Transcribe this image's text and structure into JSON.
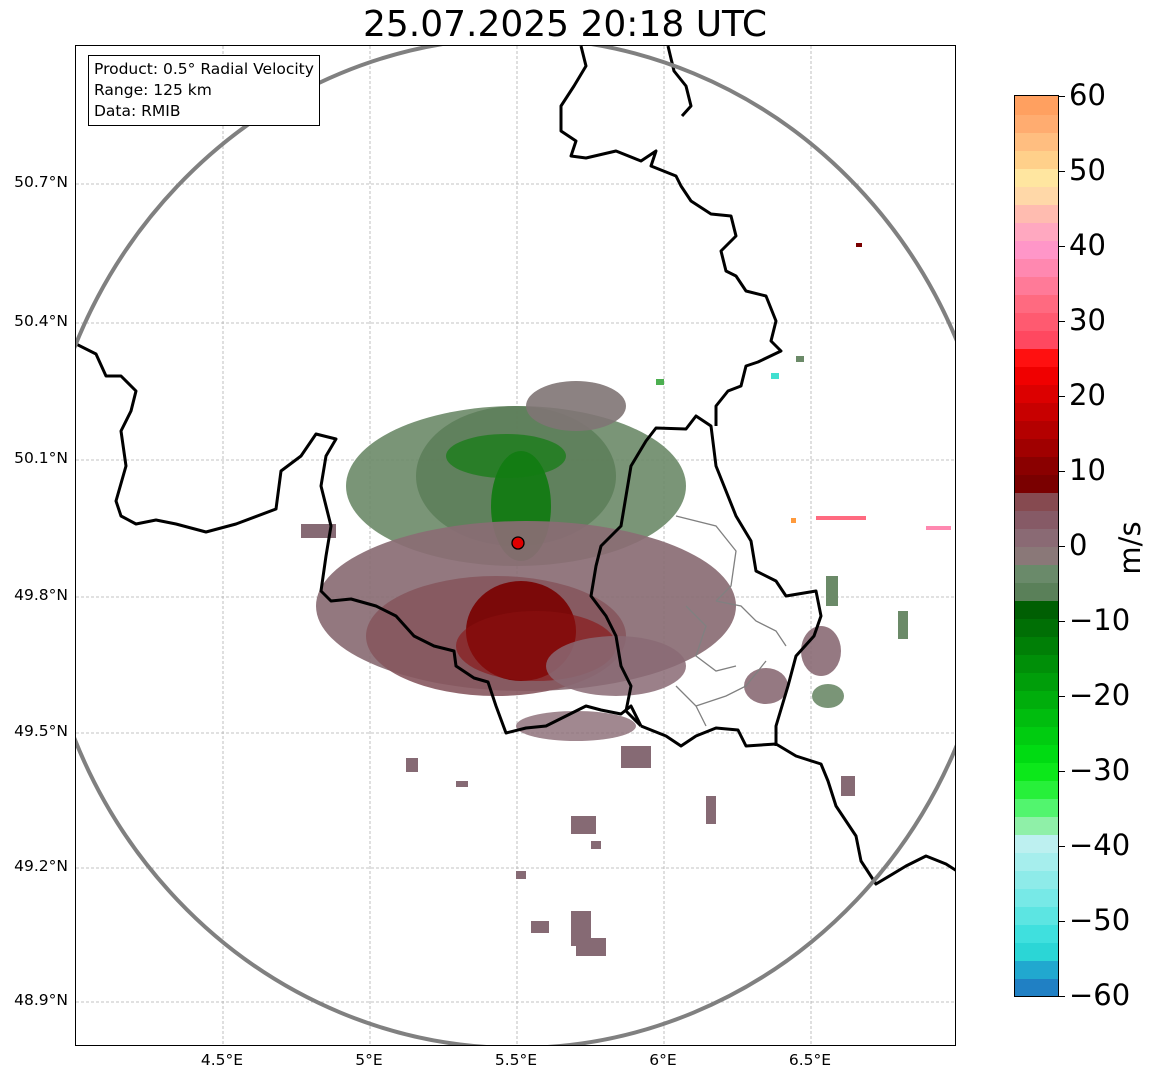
{
  "title": "25.07.2025 20:18 UTC",
  "info_box": {
    "product": "Product: 0.5° Radial Velocity",
    "range": "Range: 125 km",
    "data": "Data: RMIB"
  },
  "latitude_labels": [
    "50.7°N",
    "50.4°N",
    "50.1°N",
    "49.8°N",
    "49.5°N",
    "49.2°N",
    "48.9°N"
  ],
  "longitude_labels": [
    "4.5°E",
    "5°E",
    "5.5°E",
    "6°E",
    "6.5°E"
  ],
  "colorbar": {
    "unit": "m/s",
    "tick_labels": [
      "60",
      "50",
      "40",
      "30",
      "20",
      "10",
      "0",
      "−10",
      "−20",
      "−30",
      "−40",
      "−50",
      "−60"
    ],
    "min": -60,
    "max": 60,
    "colors": [
      "#2080c4",
      "#21a8cf",
      "#2bd6d6",
      "#3fe0de",
      "#5ce5e2",
      "#77e9e7",
      "#8eebe9",
      "#a6eeed",
      "#bdf0f0",
      "#8ff0a8",
      "#52f56e",
      "#27f03a",
      "#0ce81a",
      "#00db12",
      "#00cc10",
      "#00bd0e",
      "#00ae0c",
      "#009e0a",
      "#008f08",
      "#007f06",
      "#006f05",
      "#005f03",
      "#5a8059",
      "#6a8a6a",
      "#8a7878",
      "#8a6a74",
      "#865a66",
      "#864a50",
      "#7a0000",
      "#8a0000",
      "#a00000",
      "#b40000",
      "#c80000",
      "#dc0000",
      "#f00000",
      "#ff1010",
      "#ff4860",
      "#ff5a70",
      "#ff6a80",
      "#ff7a98",
      "#ff88b0",
      "#ff96c8",
      "#ffa8c0",
      "#ffbcb0",
      "#ffd8a8",
      "#ffe6a0",
      "#ffd08a",
      "#ffbe80",
      "#ffac70",
      "#ffa060"
    ]
  },
  "map": {
    "radar_site": {
      "lon": 5.5,
      "lat": 49.92,
      "color": "#e00000"
    },
    "range_ring_color": "#808080",
    "border_color": "#000000",
    "admin_border_color": "#808080",
    "grid_color": "#b0b0b0"
  }
}
